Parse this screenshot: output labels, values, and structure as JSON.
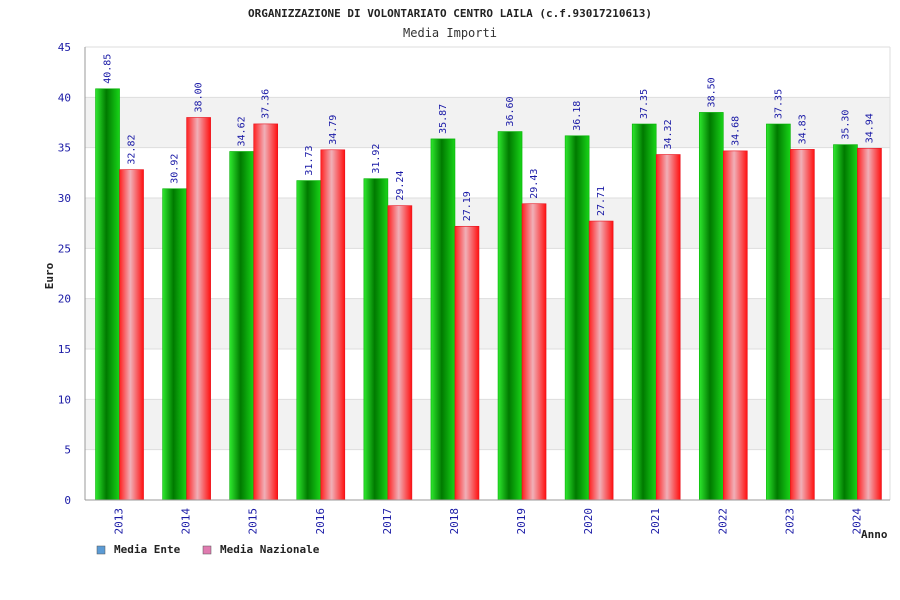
{
  "colors": {
    "ente": "#00b000",
    "nazionale": "#e8101c",
    "legend_ente": "#5b9bd5",
    "legend_nazionale": "#e07bb0",
    "tick_text": "#1a1aa6"
  },
  "chart_data": {
    "type": "bar",
    "title": "ORGANIZZAZIONE DI VOLONTARIATO CENTRO LAILA (c.f.93017210613)",
    "subtitle": "Media Importi",
    "xlabel": "Anno",
    "ylabel": "Euro",
    "ylim": [
      0,
      45
    ],
    "yticks": [
      "0",
      "5",
      "10",
      "15",
      "20",
      "25",
      "30",
      "35",
      "40",
      "45"
    ],
    "categories": [
      "2013",
      "2014",
      "2015",
      "2016",
      "2017",
      "2018",
      "2019",
      "2020",
      "2021",
      "2022",
      "2023",
      "2024"
    ],
    "series": [
      {
        "name": "Media Ente",
        "values": [
          40.85,
          30.92,
          34.62,
          31.73,
          31.92,
          35.87,
          36.6,
          36.18,
          37.35,
          38.5,
          37.35,
          35.3
        ],
        "labels": [
          "40.85",
          "30.92",
          "34.62",
          "31.73",
          "31.92",
          "35.87",
          "36.60",
          "36.18",
          "37.35",
          "38.50",
          "37.35",
          "35.30"
        ]
      },
      {
        "name": "Media Nazionale",
        "values": [
          32.82,
          38.0,
          37.36,
          34.79,
          29.24,
          27.19,
          29.43,
          27.71,
          34.32,
          34.68,
          34.83,
          34.94
        ],
        "labels": [
          "32.82",
          "38.00",
          "37.36",
          "34.79",
          "29.24",
          "27.19",
          "29.43",
          "27.71",
          "34.32",
          "34.68",
          "34.83",
          "34.94"
        ]
      }
    ],
    "legend": [
      "Media Ente",
      "Media Nazionale"
    ],
    "grid": true
  }
}
